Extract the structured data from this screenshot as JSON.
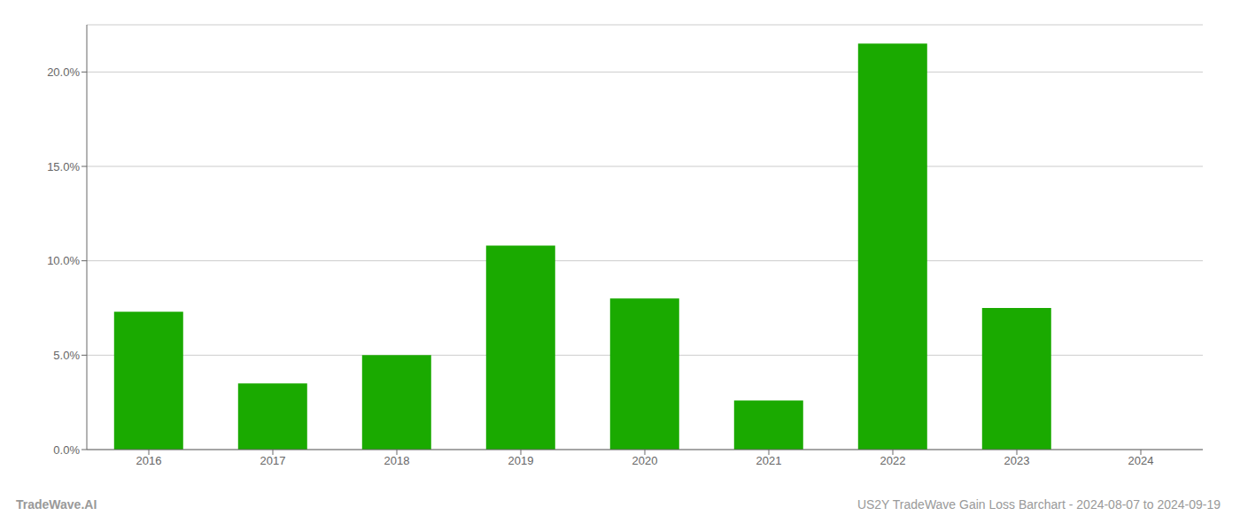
{
  "chart_data": {
    "type": "bar",
    "categories": [
      "2016",
      "2017",
      "2018",
      "2019",
      "2020",
      "2021",
      "2022",
      "2023",
      "2024"
    ],
    "values": [
      0.073,
      0.035,
      0.05,
      0.108,
      0.08,
      0.026,
      0.215,
      0.075,
      0.0
    ],
    "color": "#1aaa00",
    "ylim": [
      0,
      0.225
    ],
    "yticks": [
      {
        "value": 0.0,
        "label": "0.0%"
      },
      {
        "value": 0.05,
        "label": "5.0%"
      },
      {
        "value": 0.1,
        "label": "10.0%"
      },
      {
        "value": 0.15,
        "label": "15.0%"
      },
      {
        "value": 0.2,
        "label": "20.0%"
      }
    ],
    "grid": true,
    "annotations": [
      "TradeWave.AI",
      "US2Y TradeWave Gain Loss Barchart - 2024-08-07 to 2024-09-19"
    ]
  }
}
